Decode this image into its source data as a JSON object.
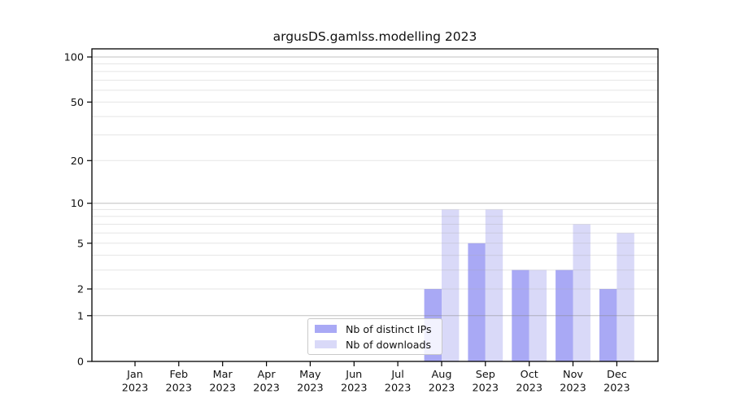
{
  "chart_data": {
    "type": "bar",
    "title": "argusDS.gamlss.modelling 2023",
    "yscale": "log1p",
    "ylim": [
      0,
      113
    ],
    "grid": "on",
    "legend_position": "inside bottom-center",
    "categories": [
      "Jan",
      "Feb",
      "Mar",
      "Apr",
      "May",
      "Jun",
      "Jul",
      "Aug",
      "Sep",
      "Oct",
      "Nov",
      "Dec"
    ],
    "year_label": "2023",
    "series": [
      {
        "name": "Nb of distinct IPs",
        "color": "#a9a9f5",
        "values": [
          0,
          0,
          0,
          0,
          0,
          0,
          0,
          2,
          5,
          3,
          3,
          2
        ]
      },
      {
        "name": "Nb of downloads",
        "color": "#d9d9f8",
        "values": [
          0,
          0,
          0,
          0,
          0,
          0,
          0,
          9,
          9,
          3,
          7,
          6
        ]
      }
    ],
    "y_ticks": [
      0,
      1,
      2,
      5,
      10,
      20,
      50,
      100
    ],
    "y_gridlines_major": [
      1,
      10,
      100
    ],
    "y_gridlines_minor": [
      2,
      3,
      4,
      5,
      6,
      7,
      8,
      9,
      20,
      30,
      40,
      50,
      60,
      70,
      80,
      90
    ]
  }
}
